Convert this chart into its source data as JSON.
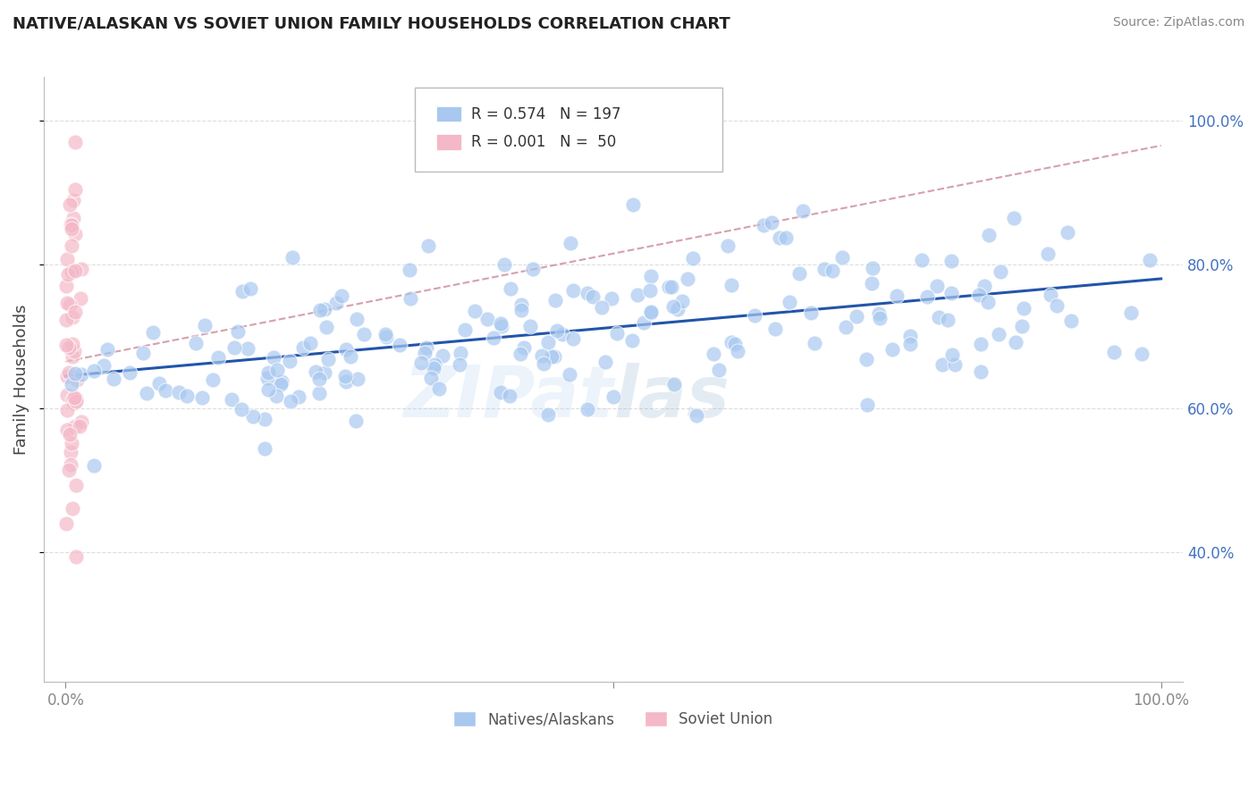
{
  "title": "NATIVE/ALASKAN VS SOVIET UNION FAMILY HOUSEHOLDS CORRELATION CHART",
  "source": "Source: ZipAtlas.com",
  "ylabel": "Family Households",
  "xlim": [
    -0.02,
    1.02
  ],
  "ylim": [
    0.22,
    1.06
  ],
  "yticks": [
    0.4,
    0.6,
    0.8,
    1.0
  ],
  "ytick_labels": [
    "40.0%",
    "60.0%",
    "80.0%",
    "100.0%"
  ],
  "xticks": [
    0.0,
    0.5,
    1.0
  ],
  "xtick_labels": [
    "0.0%",
    "",
    "100.0%"
  ],
  "blue_color": "#a8c8f0",
  "pink_color": "#f4b8c8",
  "blue_line_color": "#2255aa",
  "pink_line_color": "#cc8898",
  "watermark": "ZipAtlas",
  "blue_N": 197,
  "pink_N": 50,
  "blue_slope": 0.135,
  "blue_intercept": 0.645,
  "pink_slope": 0.3,
  "pink_intercept": 0.665,
  "background": "#ffffff",
  "grid_color": "#dddddd",
  "right_label_color": "#4472c4",
  "title_color": "#222222",
  "source_color": "#888888"
}
